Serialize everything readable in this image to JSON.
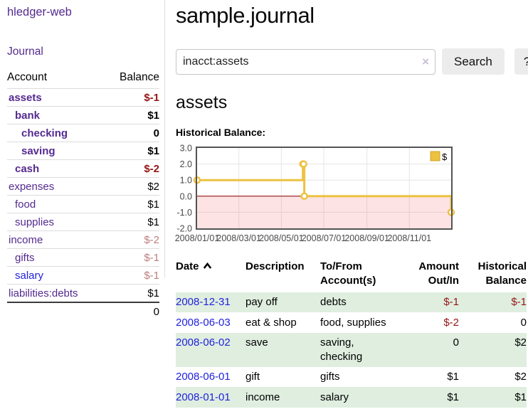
{
  "sidebar": {
    "app_title": "hledger-web",
    "journal_link": "Journal",
    "accounts_table": {
      "account_header": "Account",
      "balance_header": "Balance",
      "rows": [
        {
          "account": "assets",
          "balance": "$-1",
          "depth": 0,
          "bold": true,
          "bal_cls": "neg-strong",
          "link": "purple"
        },
        {
          "account": "bank",
          "balance": "$1",
          "depth": 1,
          "bold": true,
          "bal_cls": "",
          "link": "purple"
        },
        {
          "account": "checking",
          "balance": "0",
          "depth": 2,
          "bold": true,
          "bal_cls": "",
          "link": "purple"
        },
        {
          "account": "saving",
          "balance": "$1",
          "depth": 2,
          "bold": true,
          "bal_cls": "",
          "link": "purple"
        },
        {
          "account": "cash",
          "balance": "$-2",
          "depth": 1,
          "bold": true,
          "bal_cls": "neg-strong",
          "link": "purple"
        },
        {
          "account": "expenses",
          "balance": "$2",
          "depth": 0,
          "bold": false,
          "bal_cls": "",
          "link": "purple"
        },
        {
          "account": "food",
          "balance": "$1",
          "depth": 1,
          "bold": false,
          "bal_cls": "",
          "link": "purple"
        },
        {
          "account": "supplies",
          "balance": "$1",
          "depth": 1,
          "bold": false,
          "bal_cls": "",
          "link": "purple"
        },
        {
          "account": "income",
          "balance": "$-2",
          "depth": 0,
          "bold": false,
          "bal_cls": "neg-soft",
          "link": "purple"
        },
        {
          "account": "gifts",
          "balance": "$-1",
          "depth": 1,
          "bold": false,
          "bal_cls": "neg-soft",
          "link": "purple"
        },
        {
          "account": "salary",
          "balance": "$-1",
          "depth": 1,
          "bold": false,
          "bal_cls": "neg-soft",
          "link": "blue"
        },
        {
          "account": "liabilities:debts",
          "balance": "$1",
          "depth": 0,
          "bold": false,
          "bal_cls": "",
          "link": "purple"
        }
      ],
      "total": "0"
    }
  },
  "main": {
    "title": "sample.journal",
    "search": {
      "value": "inacct:assets",
      "clear_label": "×",
      "button_label": "Search",
      "help_label": "?"
    },
    "account_heading": "assets",
    "section_label": "Historical Balance:",
    "register": {
      "headers": {
        "date": "Date",
        "description": "Description",
        "accounts": "To/From Account(s)",
        "amount": "Amount Out/In",
        "balance": "Historical Balance"
      },
      "rows": [
        {
          "date": "2008-12-31",
          "description": "pay off",
          "accounts": "debts",
          "amount": "$-1",
          "amount_cls": "neg",
          "balance": "$-1",
          "balance_cls": "neg"
        },
        {
          "date": "2008-06-03",
          "description": "eat & shop",
          "accounts": "food, supplies",
          "amount": "$-2",
          "amount_cls": "neg",
          "balance": "0",
          "balance_cls": ""
        },
        {
          "date": "2008-06-02",
          "description": "save",
          "accounts": "saving, checking",
          "amount": "0",
          "amount_cls": "",
          "balance": "$2",
          "balance_cls": ""
        },
        {
          "date": "2008-06-01",
          "description": "gift",
          "accounts": "gifts",
          "amount": "$1",
          "amount_cls": "",
          "balance": "$2",
          "balance_cls": ""
        },
        {
          "date": "2008-01-01",
          "description": "income",
          "accounts": "salary",
          "amount": "$1",
          "amount_cls": "",
          "balance": "$1",
          "balance_cls": ""
        }
      ]
    }
  },
  "chart_data": {
    "type": "line",
    "step": true,
    "title": "Historical Balance:",
    "series": [
      {
        "name": "$",
        "color": "#edc240",
        "points": [
          [
            "2008/01/01",
            1
          ],
          [
            "2008/06/01",
            2
          ],
          [
            "2008/06/02",
            2
          ],
          [
            "2008/06/03",
            0
          ],
          [
            "2008/12/31",
            -1
          ]
        ]
      }
    ],
    "x_ticks": [
      "2008/01/01",
      "2008/03/01",
      "2008/05/01",
      "2008/07/01",
      "2008/09/01",
      "2008/11/01"
    ],
    "y_ticks": [
      "3.0",
      "2.0",
      "1.0",
      "0.0",
      "-1.0",
      "-2.0"
    ],
    "ylim": [
      -2,
      3
    ],
    "xlim": [
      "2008/01/01",
      "2008/12/31"
    ],
    "legend_position": "top-right",
    "grid": true,
    "zero_line_color": "#8b0000",
    "negative_fill": "rgba(242,70,70,0.15)",
    "border_color": "#545454",
    "grid_color": "#e5e5e5",
    "tick_label_color": "#494949",
    "legend_box_border": "#cda32a"
  },
  "colors": {
    "link_purple": "#552a90",
    "link_blue": "#2222dd",
    "negative_strong": "#951515",
    "negative_soft": "#bd7d7d",
    "row_stripe_green": "#dfeedf",
    "accent_gold": "#edc240"
  }
}
